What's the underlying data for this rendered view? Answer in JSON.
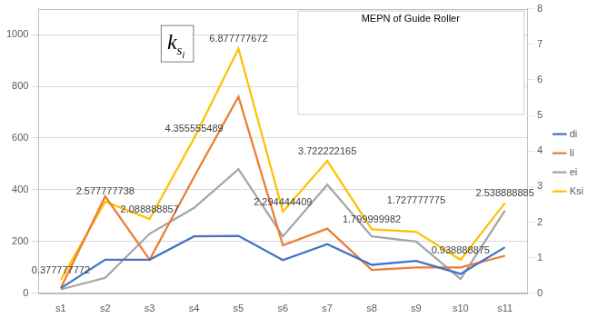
{
  "chart_data": {
    "type": "line",
    "categories": [
      "s1",
      "s2",
      "s3",
      "s4",
      "s5",
      "s6",
      "s7",
      "s8",
      "s9",
      "s10",
      "s11"
    ],
    "series": [
      {
        "name": "di",
        "color": "#4472c4",
        "values": [
          20,
          130,
          130,
          220,
          222,
          128,
          190,
          110,
          125,
          75,
          178
        ]
      },
      {
        "name": "li",
        "color": "#ed7d31",
        "values": [
          20,
          375,
          130,
          450,
          760,
          185,
          250,
          90,
          100,
          100,
          145
        ]
      },
      {
        "name": "ei",
        "color": "#a5a5a5",
        "values": [
          15,
          60,
          230,
          330,
          480,
          220,
          420,
          220,
          200,
          55,
          320
        ]
      },
      {
        "name": "Ksi",
        "color": "#ffc000",
        "axis": "y2",
        "data_labels": true,
        "values": [
          0.377777772,
          2.577777738,
          2.088888857,
          4.355555489,
          6.877777672,
          2.294444409,
          3.722222165,
          1.799999982,
          1.727777775,
          0.938888875,
          2.538888885
        ]
      }
    ],
    "ylim": [
      0,
      1100
    ],
    "yticks": [
      0,
      200,
      400,
      600,
      800,
      1000
    ],
    "y2lim": [
      0,
      8
    ],
    "y2ticks": [
      0,
      1,
      2,
      3,
      4,
      5,
      6,
      7,
      8
    ],
    "grid": true,
    "legend": "right",
    "annotations": [
      {
        "text": "k",
        "subscript": "s",
        "sub_subscript": "i"
      },
      {
        "text": "MEPN of Guide Roller"
      }
    ]
  }
}
